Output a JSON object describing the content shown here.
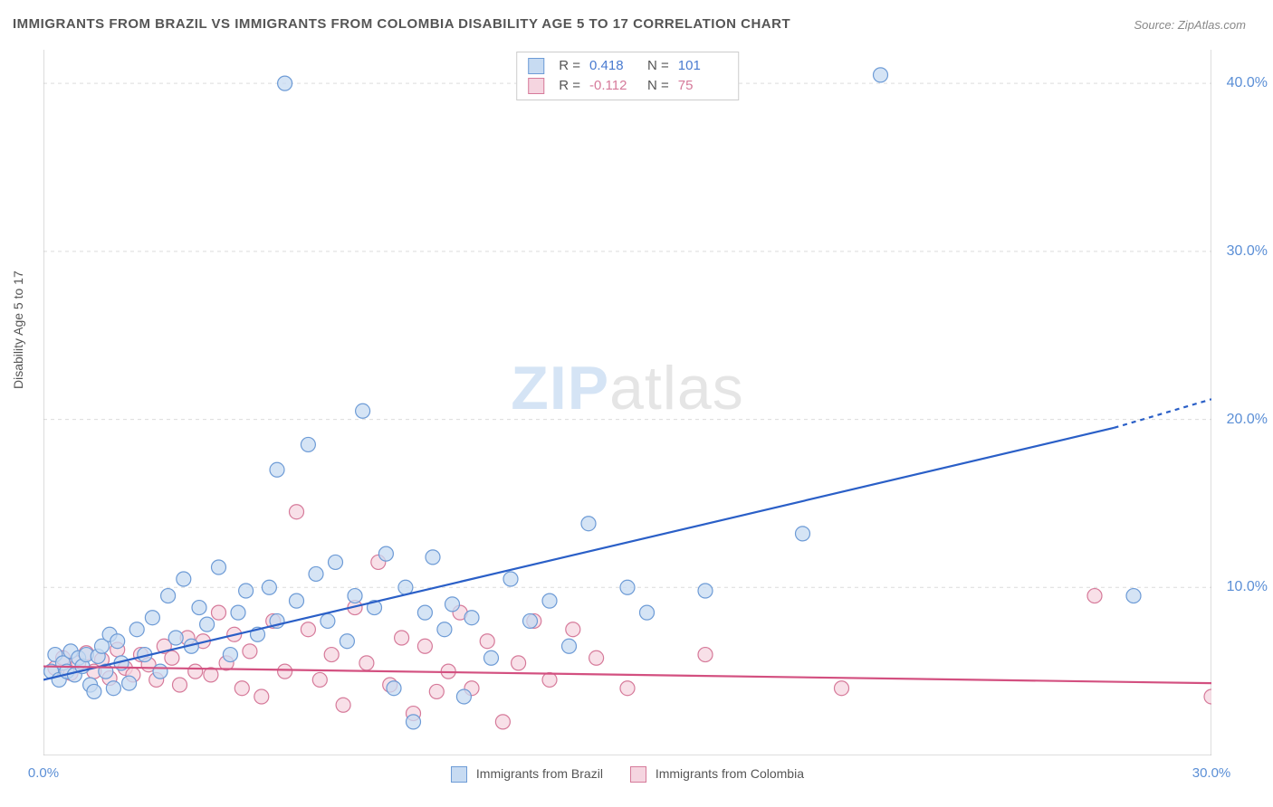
{
  "title": "IMMIGRANTS FROM BRAZIL VS IMMIGRANTS FROM COLOMBIA DISABILITY AGE 5 TO 17 CORRELATION CHART",
  "source_label": "Source: ",
  "source_value": "ZipAtlas.com",
  "y_axis_label": "Disability Age 5 to 17",
  "watermark_a": "ZIP",
  "watermark_b": "atlas",
  "chart": {
    "type": "scatter",
    "xlim": [
      0,
      30
    ],
    "ylim": [
      0,
      42
    ],
    "ytick_positions": [
      10,
      20,
      30,
      40
    ],
    "ytick_labels": [
      "10.0%",
      "20.0%",
      "30.0%",
      "40.0%"
    ],
    "xtick_positions": [
      0,
      3,
      6,
      9,
      12,
      15,
      30
    ],
    "xtick_label_left": "0.0%",
    "xtick_label_right": "30.0%",
    "grid_color": "#dcdcdc",
    "axis_color": "#bbbbbb",
    "background": "#ffffff",
    "marker_radius": 8,
    "marker_stroke_width": 1.2,
    "series": [
      {
        "name": "Immigrants from Brazil",
        "fill": "#c7dbf2",
        "stroke": "#6d9bd6",
        "r_value": "0.418",
        "n_value": "101",
        "trend": {
          "x1": 0,
          "y1": 4.5,
          "x2": 27.5,
          "y2": 19.5,
          "dash_x2": 30,
          "dash_y2": 21.2,
          "color": "#2a5fc7",
          "width": 2.2
        },
        "points": [
          [
            0.2,
            5
          ],
          [
            0.3,
            6
          ],
          [
            0.4,
            4.5
          ],
          [
            0.5,
            5.5
          ],
          [
            0.6,
            5
          ],
          [
            0.7,
            6.2
          ],
          [
            0.8,
            4.8
          ],
          [
            0.9,
            5.8
          ],
          [
            1.0,
            5.3
          ],
          [
            1.1,
            6.0
          ],
          [
            1.2,
            4.2
          ],
          [
            1.3,
            3.8
          ],
          [
            1.4,
            5.9
          ],
          [
            1.5,
            6.5
          ],
          [
            1.6,
            5.0
          ],
          [
            1.7,
            7.2
          ],
          [
            1.8,
            4.0
          ],
          [
            1.9,
            6.8
          ],
          [
            2.0,
            5.5
          ],
          [
            2.2,
            4.3
          ],
          [
            2.4,
            7.5
          ],
          [
            2.6,
            6.0
          ],
          [
            2.8,
            8.2
          ],
          [
            3.0,
            5.0
          ],
          [
            3.2,
            9.5
          ],
          [
            3.4,
            7.0
          ],
          [
            3.6,
            10.5
          ],
          [
            3.8,
            6.5
          ],
          [
            4.0,
            8.8
          ],
          [
            4.2,
            7.8
          ],
          [
            4.5,
            11.2
          ],
          [
            4.8,
            6.0
          ],
          [
            5.0,
            8.5
          ],
          [
            5.2,
            9.8
          ],
          [
            5.5,
            7.2
          ],
          [
            5.8,
            10.0
          ],
          [
            6.0,
            17.0
          ],
          [
            6.0,
            8.0
          ],
          [
            6.2,
            40.0
          ],
          [
            6.5,
            9.2
          ],
          [
            6.8,
            18.5
          ],
          [
            7.0,
            10.8
          ],
          [
            7.3,
            8.0
          ],
          [
            7.5,
            11.5
          ],
          [
            7.8,
            6.8
          ],
          [
            8.0,
            9.5
          ],
          [
            8.2,
            20.5
          ],
          [
            8.5,
            8.8
          ],
          [
            8.8,
            12.0
          ],
          [
            9.0,
            4.0
          ],
          [
            9.3,
            10.0
          ],
          [
            9.5,
            2.0
          ],
          [
            9.8,
            8.5
          ],
          [
            10.0,
            11.8
          ],
          [
            10.3,
            7.5
          ],
          [
            10.5,
            9.0
          ],
          [
            10.8,
            3.5
          ],
          [
            11.0,
            8.2
          ],
          [
            11.5,
            5.8
          ],
          [
            12.0,
            10.5
          ],
          [
            12.5,
            8.0
          ],
          [
            13.0,
            9.2
          ],
          [
            13.5,
            6.5
          ],
          [
            14.0,
            13.8
          ],
          [
            15.0,
            10.0
          ],
          [
            15.5,
            8.5
          ],
          [
            17.0,
            9.8
          ],
          [
            19.5,
            13.2
          ],
          [
            21.5,
            40.5
          ],
          [
            28.0,
            9.5
          ]
        ]
      },
      {
        "name": "Immigrants from Colombia",
        "fill": "#f5d5e0",
        "stroke": "#d67a9a",
        "r_value": "-0.112",
        "n_value": "75",
        "trend": {
          "x1": 0,
          "y1": 5.3,
          "x2": 30,
          "y2": 4.3,
          "color": "#d35080",
          "width": 2.2
        },
        "points": [
          [
            0.3,
            5.2
          ],
          [
            0.5,
            5.8
          ],
          [
            0.7,
            4.9
          ],
          [
            0.9,
            5.5
          ],
          [
            1.1,
            6.1
          ],
          [
            1.3,
            5.0
          ],
          [
            1.5,
            5.7
          ],
          [
            1.7,
            4.6
          ],
          [
            1.9,
            6.3
          ],
          [
            2.1,
            5.2
          ],
          [
            2.3,
            4.8
          ],
          [
            2.5,
            6.0
          ],
          [
            2.7,
            5.4
          ],
          [
            2.9,
            4.5
          ],
          [
            3.1,
            6.5
          ],
          [
            3.3,
            5.8
          ],
          [
            3.5,
            4.2
          ],
          [
            3.7,
            7.0
          ],
          [
            3.9,
            5.0
          ],
          [
            4.1,
            6.8
          ],
          [
            4.3,
            4.8
          ],
          [
            4.5,
            8.5
          ],
          [
            4.7,
            5.5
          ],
          [
            4.9,
            7.2
          ],
          [
            5.1,
            4.0
          ],
          [
            5.3,
            6.2
          ],
          [
            5.6,
            3.5
          ],
          [
            5.9,
            8.0
          ],
          [
            6.2,
            5.0
          ],
          [
            6.5,
            14.5
          ],
          [
            6.8,
            7.5
          ],
          [
            7.1,
            4.5
          ],
          [
            7.4,
            6.0
          ],
          [
            7.7,
            3.0
          ],
          [
            8.0,
            8.8
          ],
          [
            8.3,
            5.5
          ],
          [
            8.6,
            11.5
          ],
          [
            8.9,
            4.2
          ],
          [
            9.2,
            7.0
          ],
          [
            9.5,
            2.5
          ],
          [
            9.8,
            6.5
          ],
          [
            10.1,
            3.8
          ],
          [
            10.4,
            5.0
          ],
          [
            10.7,
            8.5
          ],
          [
            11.0,
            4.0
          ],
          [
            11.4,
            6.8
          ],
          [
            11.8,
            2.0
          ],
          [
            12.2,
            5.5
          ],
          [
            12.6,
            8.0
          ],
          [
            13.0,
            4.5
          ],
          [
            13.6,
            7.5
          ],
          [
            14.2,
            5.8
          ],
          [
            15.0,
            4.0
          ],
          [
            17.0,
            6.0
          ],
          [
            20.5,
            4.0
          ],
          [
            27.0,
            9.5
          ],
          [
            30.0,
            3.5
          ]
        ]
      }
    ]
  },
  "legend_top": {
    "r_label": "R  =",
    "n_label": "N  ="
  },
  "series1_label": "Immigrants from Brazil",
  "series2_label": "Immigrants from Colombia"
}
